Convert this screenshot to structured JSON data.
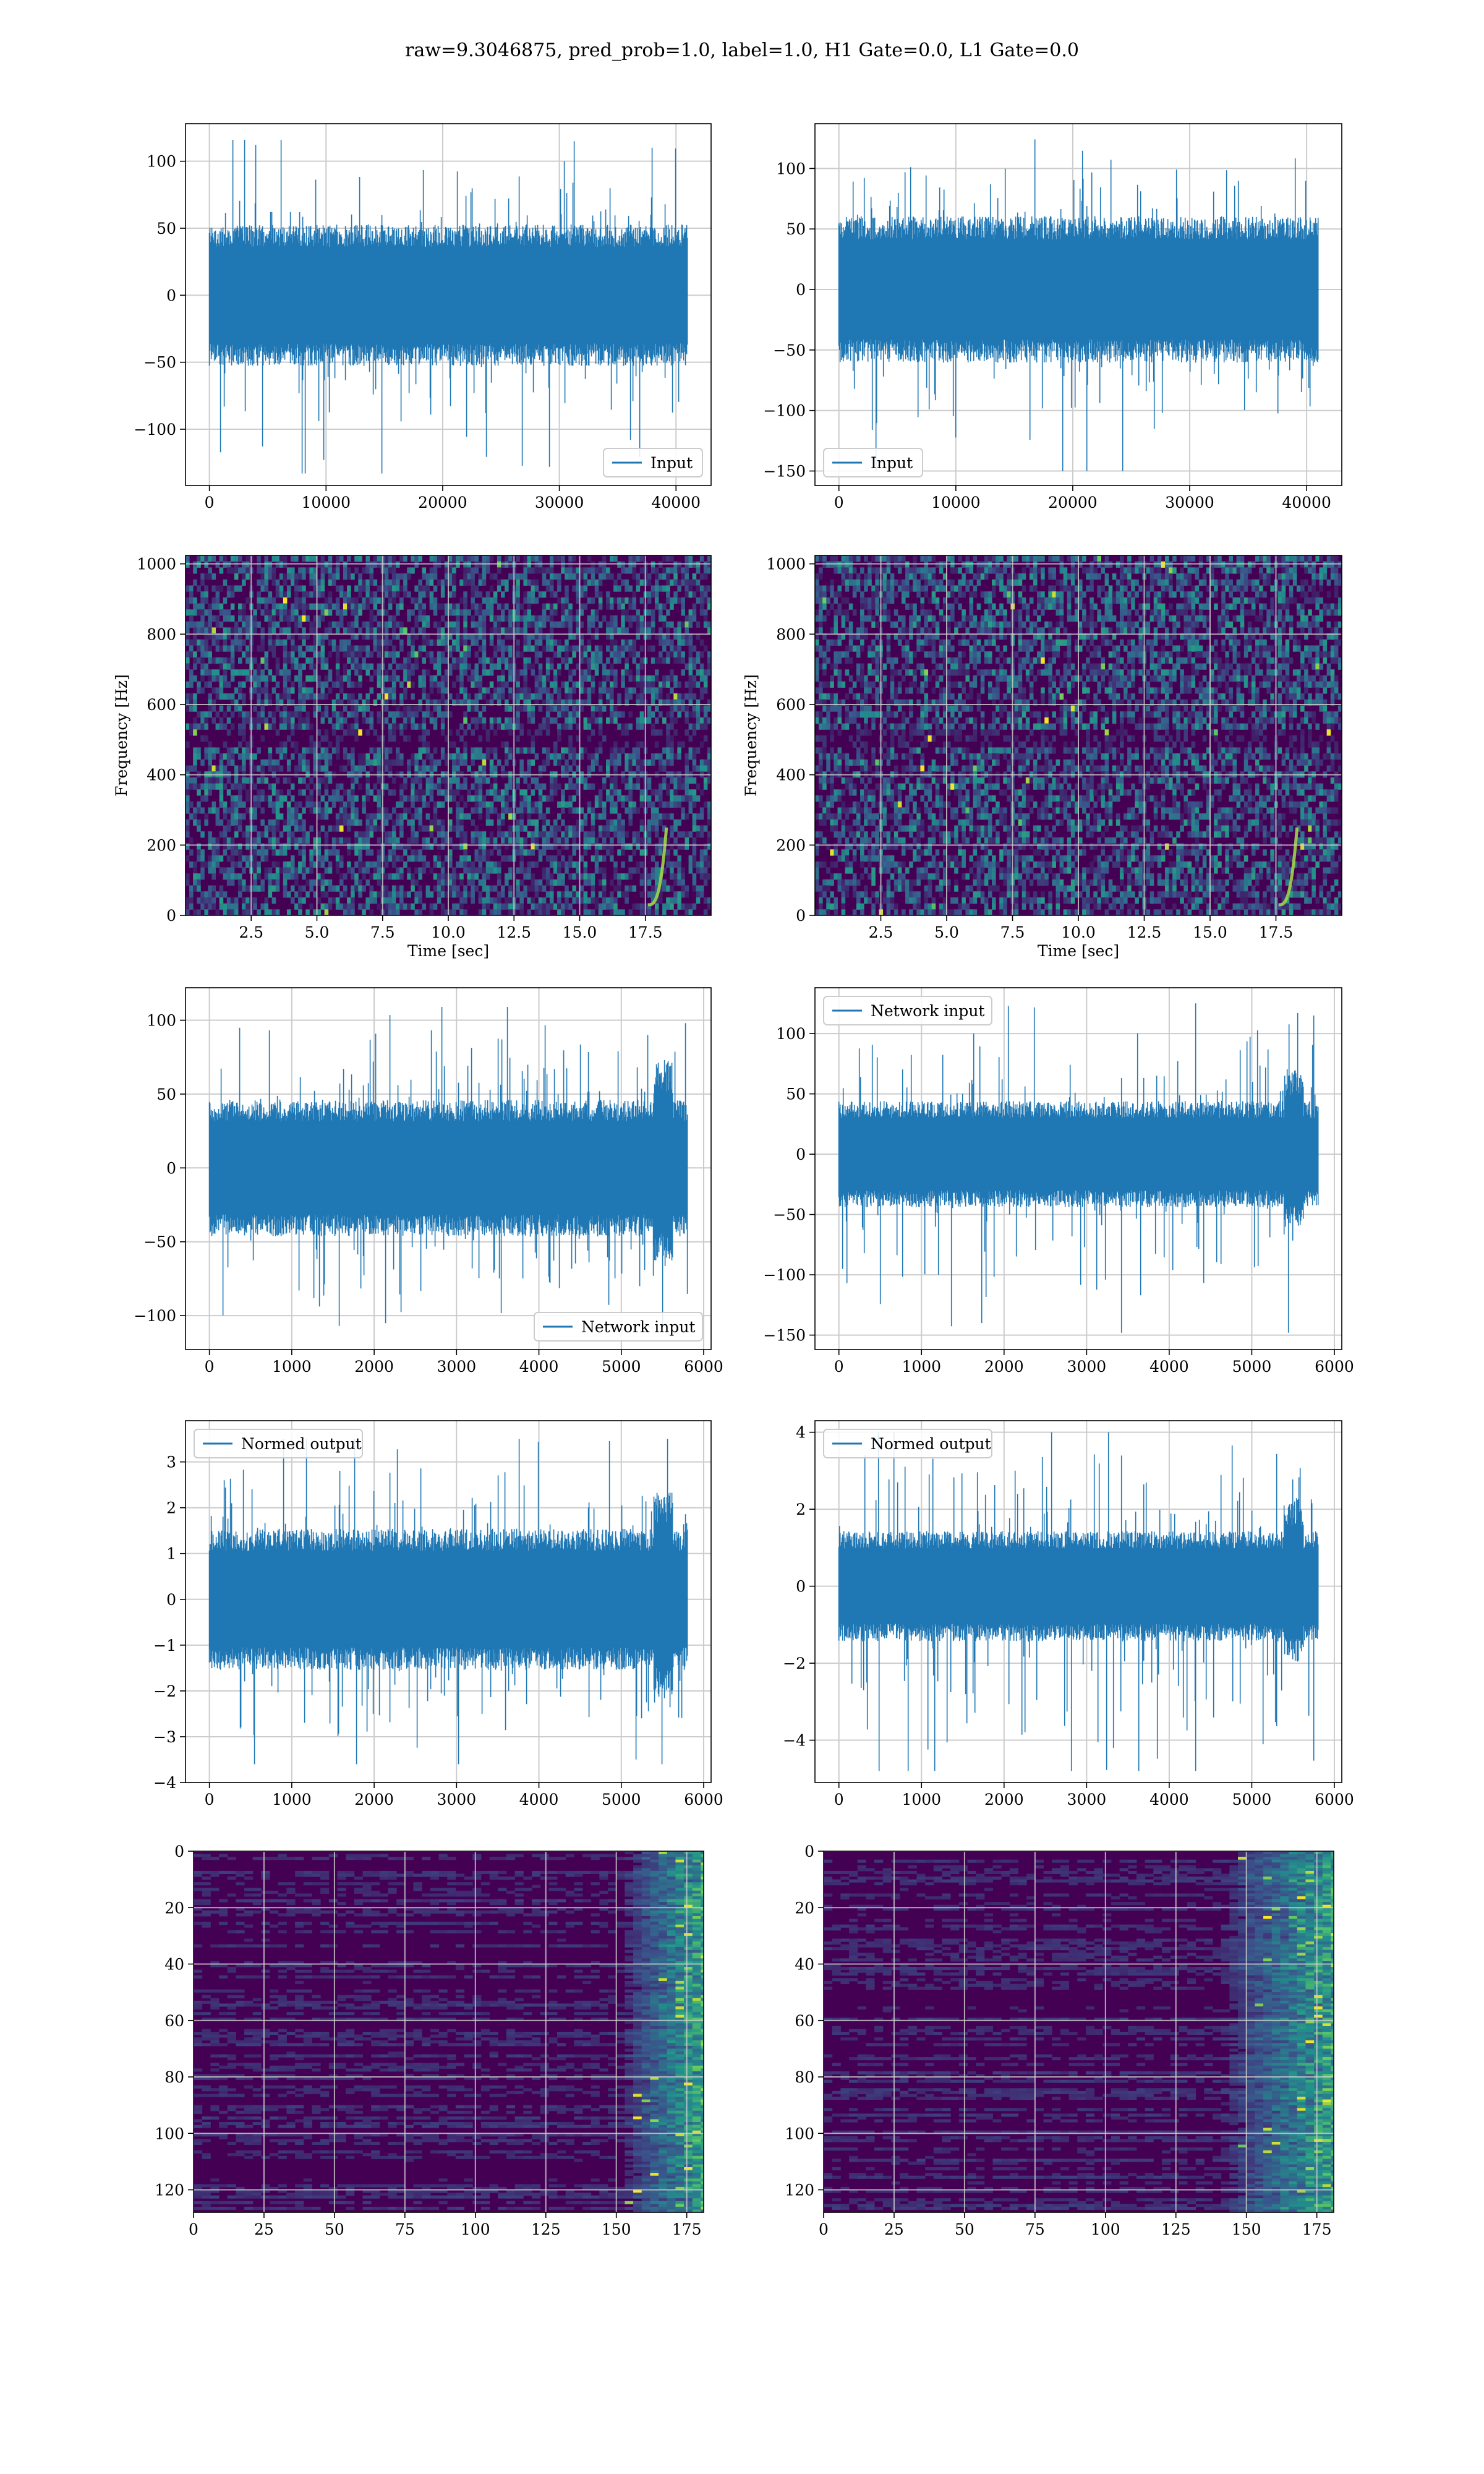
{
  "title": "raw=9.3046875, pred_prob=1.0, label=1.0, H1 Gate=0.0, L1 Gate=0.0",
  "colors": {
    "line": "#1f77b4",
    "grid": "#cccccc",
    "viridis_dark": "#440154"
  },
  "chart_data": [
    {
      "id": "h1-input",
      "type": "line",
      "x": [
        0,
        40960
      ],
      "xlim": [
        -2048,
        43008
      ],
      "ylim": [
        -142,
        128
      ],
      "xticks": [
        0,
        10000,
        20000,
        30000,
        40000
      ],
      "xticklabels": [
        "0",
        "10000",
        "20000",
        "30000",
        "40000"
      ],
      "yticks": [
        -100,
        -50,
        0,
        50,
        100
      ],
      "yticklabels": [
        "−100",
        "−50",
        "0",
        "50",
        "100"
      ],
      "envelope": {
        "core": 48,
        "peak_hi": 116,
        "peak_lo": -133
      },
      "series": [
        {
          "name": "Input"
        }
      ],
      "legend": "lower right",
      "grid": true
    },
    {
      "id": "l1-input",
      "type": "line",
      "x": [
        0,
        40960
      ],
      "xlim": [
        -2048,
        43008
      ],
      "ylim": [
        -162,
        137
      ],
      "xticks": [
        0,
        10000,
        20000,
        30000,
        40000
      ],
      "xticklabels": [
        "0",
        "10000",
        "20000",
        "30000",
        "40000"
      ],
      "yticks": [
        -150,
        -100,
        -50,
        0,
        50,
        100
      ],
      "yticklabels": [
        "−150",
        "−100",
        "−50",
        "0",
        "50",
        "100"
      ],
      "envelope": {
        "core": 55,
        "peak_hi": 124,
        "peak_lo": -150
      },
      "series": [
        {
          "name": "Input"
        }
      ],
      "legend": "lower left",
      "grid": true
    },
    {
      "id": "h1-spectrogram",
      "type": "heatmap",
      "xlabel": "Time [sec]",
      "ylabel": "Frequency [Hz]",
      "xlim": [
        0,
        20
      ],
      "ylim": [
        0,
        1024
      ],
      "xticks": [
        2.5,
        5.0,
        7.5,
        10.0,
        12.5,
        15.0,
        17.5
      ],
      "xticklabels": [
        "2.5",
        "5.0",
        "7.5",
        "10.0",
        "12.5",
        "15.0",
        "17.5"
      ],
      "yticks": [
        0,
        200,
        400,
        600,
        800,
        1000
      ],
      "yticklabels": [
        "0",
        "200",
        "400",
        "600",
        "800",
        "1000"
      ],
      "colormap": "viridis",
      "chirp_time": 18.3,
      "grid": true
    },
    {
      "id": "l1-spectrogram",
      "type": "heatmap",
      "xlabel": "Time [sec]",
      "ylabel": "Frequency [Hz]",
      "xlim": [
        0,
        20
      ],
      "ylim": [
        0,
        1024
      ],
      "xticks": [
        2.5,
        5.0,
        7.5,
        10.0,
        12.5,
        15.0,
        17.5
      ],
      "xticklabels": [
        "2.5",
        "5.0",
        "7.5",
        "10.0",
        "12.5",
        "15.0",
        "17.5"
      ],
      "yticks": [
        0,
        200,
        400,
        600,
        800,
        1000
      ],
      "yticklabels": [
        "0",
        "200",
        "400",
        "600",
        "800",
        "1000"
      ],
      "colormap": "viridis",
      "chirp_time": 18.3,
      "grid": true
    },
    {
      "id": "h1-network-input",
      "type": "line",
      "x": [
        0,
        5800
      ],
      "xlim": [
        -290,
        6090
      ],
      "ylim": [
        -123,
        122
      ],
      "xticks": [
        0,
        1000,
        2000,
        3000,
        4000,
        5000,
        6000
      ],
      "xticklabels": [
        "0",
        "1000",
        "2000",
        "3000",
        "4000",
        "5000",
        "6000"
      ],
      "yticks": [
        -100,
        -50,
        0,
        50,
        100
      ],
      "yticklabels": [
        "−100",
        "−50",
        "0",
        "50",
        "100"
      ],
      "envelope": {
        "core": 42,
        "peak_hi": 109,
        "peak_lo": -107
      },
      "series": [
        {
          "name": "Network input"
        }
      ],
      "legend": "lower right",
      "grid": true
    },
    {
      "id": "l1-network-input",
      "type": "line",
      "x": [
        0,
        5800
      ],
      "xlim": [
        -290,
        6090
      ],
      "ylim": [
        -162,
        138
      ],
      "xticks": [
        0,
        1000,
        2000,
        3000,
        4000,
        5000,
        6000
      ],
      "xticklabels": [
        "0",
        "1000",
        "2000",
        "3000",
        "4000",
        "5000",
        "6000"
      ],
      "yticks": [
        -150,
        -100,
        -50,
        0,
        50,
        100
      ],
      "yticklabels": [
        "−150",
        "−100",
        "−50",
        "0",
        "50",
        "100"
      ],
      "envelope": {
        "core": 40,
        "peak_hi": 125,
        "peak_lo": -148
      },
      "series": [
        {
          "name": "Network input"
        }
      ],
      "legend": "upper left",
      "grid": true
    },
    {
      "id": "h1-normed-output",
      "type": "line",
      "x": [
        0,
        5800
      ],
      "xlim": [
        -290,
        6090
      ],
      "ylim": [
        -4.0,
        3.9
      ],
      "xticks": [
        0,
        1000,
        2000,
        3000,
        4000,
        5000,
        6000
      ],
      "xticklabels": [
        "0",
        "1000",
        "2000",
        "3000",
        "4000",
        "5000",
        "6000"
      ],
      "yticks": [
        -4,
        -3,
        -2,
        -1,
        0,
        1,
        2,
        3
      ],
      "yticklabels": [
        "−4",
        "−3",
        "−2",
        "−1",
        "0",
        "1",
        "2",
        "3"
      ],
      "envelope": {
        "core": 1.4,
        "peak_hi": 3.5,
        "peak_lo": -3.6
      },
      "series": [
        {
          "name": "Normed output"
        }
      ],
      "legend": "upper left",
      "grid": true
    },
    {
      "id": "l1-normed-output",
      "type": "line",
      "x": [
        0,
        5800
      ],
      "xlim": [
        -290,
        6090
      ],
      "ylim": [
        -5.1,
        4.3
      ],
      "xticks": [
        0,
        1000,
        2000,
        3000,
        4000,
        5000,
        6000
      ],
      "xticklabels": [
        "0",
        "1000",
        "2000",
        "3000",
        "4000",
        "5000",
        "6000"
      ],
      "yticks": [
        -4,
        -2,
        0,
        2,
        4
      ],
      "yticklabels": [
        "−4",
        "−2",
        "0",
        "2",
        "4"
      ],
      "envelope": {
        "core": 1.3,
        "peak_hi": 4.0,
        "peak_lo": -4.8
      },
      "series": [
        {
          "name": "Normed output"
        }
      ],
      "legend": "upper left",
      "grid": true
    },
    {
      "id": "h1-feature-map",
      "type": "heatmap",
      "xlim": [
        0,
        181
      ],
      "ylim": [
        128,
        0
      ],
      "xticks": [
        0,
        25,
        50,
        75,
        100,
        125,
        150,
        175
      ],
      "xticklabels": [
        "0",
        "25",
        "50",
        "75",
        "100",
        "125",
        "150",
        "175"
      ],
      "yticks": [
        0,
        20,
        40,
        60,
        80,
        100,
        120
      ],
      "yticklabels": [
        "0",
        "20",
        "40",
        "60",
        "80",
        "100",
        "120"
      ],
      "colormap": "viridis",
      "active_from": 150,
      "grid": true
    },
    {
      "id": "l1-feature-map",
      "type": "heatmap",
      "xlim": [
        0,
        181
      ],
      "ylim": [
        128,
        0
      ],
      "xticks": [
        0,
        25,
        50,
        75,
        100,
        125,
        150,
        175
      ],
      "xticklabels": [
        "0",
        "25",
        "50",
        "75",
        "100",
        "125",
        "150",
        "175"
      ],
      "yticks": [
        0,
        20,
        40,
        60,
        80,
        100,
        120
      ],
      "yticklabels": [
        "0",
        "20",
        "40",
        "60",
        "80",
        "100",
        "120"
      ],
      "colormap": "viridis",
      "active_from": 140,
      "grid": true
    }
  ]
}
